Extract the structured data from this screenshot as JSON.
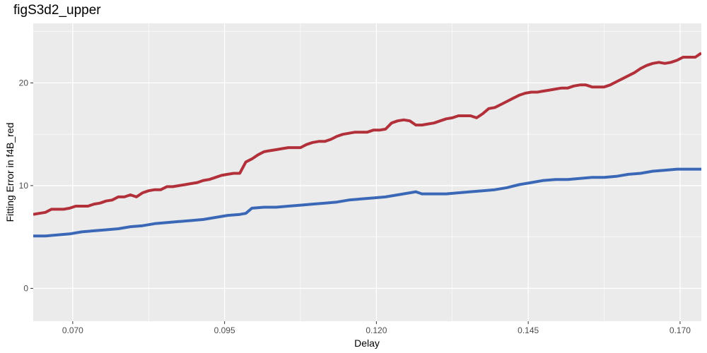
{
  "chart_data": {
    "type": "line",
    "title": "figS3d2_upper",
    "xlabel": "Delay",
    "ylabel": "Fitting Error in f4B_red",
    "xlim": [
      0.0635,
      0.1735
    ],
    "ylim": [
      -3.2,
      25.8
    ],
    "x_ticks": [
      0.07,
      0.095,
      0.12,
      0.145,
      0.17
    ],
    "x_tick_labels": [
      "0.070",
      "0.095",
      "0.120",
      "0.145",
      "0.170"
    ],
    "y_ticks": [
      0,
      10,
      20
    ],
    "y_tick_labels": [
      "0",
      "10",
      "20"
    ],
    "grid": true,
    "legend": "none",
    "colors": {
      "panel_bg": "#ebebeb",
      "grid_major": "#ffffff",
      "tick_text": "#4d4d4d",
      "series_red": "#b2303a",
      "series_blue": "#3b68b6"
    },
    "series": [
      {
        "color": "#b2303a",
        "x": [
          0.0635,
          0.0645,
          0.0655,
          0.0665,
          0.0675,
          0.0685,
          0.0695,
          0.0705,
          0.0715,
          0.0725,
          0.0735,
          0.0745,
          0.0755,
          0.0765,
          0.0775,
          0.0785,
          0.0795,
          0.0805,
          0.0815,
          0.0825,
          0.0835,
          0.0845,
          0.0855,
          0.0865,
          0.0875,
          0.0885,
          0.0895,
          0.0905,
          0.0915,
          0.0925,
          0.0935,
          0.0945,
          0.0955,
          0.0965,
          0.0975,
          0.0985,
          0.0995,
          0.1005,
          0.1015,
          0.1025,
          0.1035,
          0.1045,
          0.1055,
          0.1065,
          0.1075,
          0.1085,
          0.1095,
          0.1105,
          0.1115,
          0.1125,
          0.1135,
          0.1145,
          0.1155,
          0.1165,
          0.1175,
          0.1185,
          0.1195,
          0.1205,
          0.1215,
          0.1225,
          0.1235,
          0.1245,
          0.1255,
          0.1265,
          0.1275,
          0.1285,
          0.1295,
          0.1305,
          0.1315,
          0.1325,
          0.1335,
          0.1345,
          0.1355,
          0.1365,
          0.1375,
          0.1385,
          0.1395,
          0.1405,
          0.1415,
          0.1425,
          0.1435,
          0.1445,
          0.1455,
          0.1465,
          0.1475,
          0.1485,
          0.1495,
          0.1505,
          0.1515,
          0.1525,
          0.1535,
          0.1545,
          0.1555,
          0.1565,
          0.1575,
          0.1585,
          0.1595,
          0.1605,
          0.1615,
          0.1625,
          0.1635,
          0.1645,
          0.1655,
          0.1665,
          0.1675,
          0.1685,
          0.1695,
          0.1705,
          0.1715,
          0.1725,
          0.1735
        ],
        "y": [
          7.2,
          7.3,
          7.4,
          7.7,
          7.7,
          7.7,
          7.8,
          8.0,
          8.0,
          8.0,
          8.2,
          8.3,
          8.5,
          8.6,
          8.9,
          8.9,
          9.1,
          8.9,
          9.3,
          9.5,
          9.6,
          9.6,
          9.9,
          9.9,
          10.0,
          10.1,
          10.2,
          10.3,
          10.5,
          10.6,
          10.8,
          11.0,
          11.1,
          11.2,
          11.2,
          12.3,
          12.6,
          13.0,
          13.3,
          13.4,
          13.5,
          13.6,
          13.7,
          13.7,
          13.7,
          14.0,
          14.2,
          14.3,
          14.3,
          14.5,
          14.8,
          15.0,
          15.1,
          15.2,
          15.2,
          15.2,
          15.4,
          15.4,
          15.5,
          16.1,
          16.3,
          16.4,
          16.3,
          15.9,
          15.9,
          16.0,
          16.1,
          16.3,
          16.5,
          16.6,
          16.8,
          16.8,
          16.8,
          16.6,
          17.0,
          17.5,
          17.6,
          17.9,
          18.2,
          18.5,
          18.8,
          19.0,
          19.1,
          19.1,
          19.2,
          19.3,
          19.4,
          19.5,
          19.5,
          19.7,
          19.8,
          19.8,
          19.6,
          19.6,
          19.6,
          19.8,
          20.1,
          20.4,
          20.7,
          21.0,
          21.4,
          21.7,
          21.9,
          22.0,
          21.9,
          22.0,
          22.2,
          22.5,
          22.5,
          22.5,
          22.9
        ]
      },
      {
        "color": "#3b68b6",
        "x": [
          0.0635,
          0.0655,
          0.0675,
          0.0695,
          0.0715,
          0.0735,
          0.0755,
          0.0775,
          0.0795,
          0.0815,
          0.0835,
          0.0855,
          0.0875,
          0.0895,
          0.0915,
          0.0935,
          0.0955,
          0.0975,
          0.0985,
          0.0995,
          0.1015,
          0.1035,
          0.1055,
          0.1075,
          0.1095,
          0.1115,
          0.1135,
          0.1155,
          0.1175,
          0.1195,
          0.1215,
          0.1235,
          0.1255,
          0.1265,
          0.1275,
          0.1295,
          0.1315,
          0.1335,
          0.1355,
          0.1375,
          0.1395,
          0.1415,
          0.1435,
          0.1455,
          0.1475,
          0.1495,
          0.1515,
          0.1535,
          0.1555,
          0.1575,
          0.1595,
          0.1615,
          0.1635,
          0.1655,
          0.1675,
          0.1695,
          0.1715,
          0.1735
        ],
        "y": [
          5.1,
          5.1,
          5.2,
          5.3,
          5.5,
          5.6,
          5.7,
          5.8,
          6.0,
          6.1,
          6.3,
          6.4,
          6.5,
          6.6,
          6.7,
          6.9,
          7.1,
          7.2,
          7.3,
          7.8,
          7.9,
          7.9,
          8.0,
          8.1,
          8.2,
          8.3,
          8.4,
          8.6,
          8.7,
          8.8,
          8.9,
          9.1,
          9.3,
          9.4,
          9.2,
          9.2,
          9.2,
          9.3,
          9.4,
          9.5,
          9.6,
          9.8,
          10.1,
          10.3,
          10.5,
          10.6,
          10.6,
          10.7,
          10.8,
          10.8,
          10.9,
          11.1,
          11.2,
          11.4,
          11.5,
          11.6,
          11.6,
          11.6
        ]
      }
    ]
  }
}
